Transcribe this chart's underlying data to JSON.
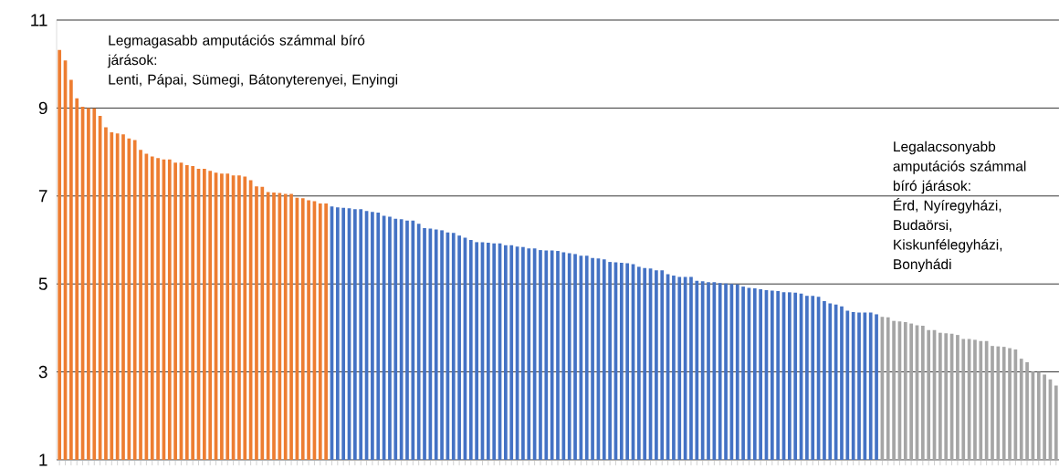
{
  "chart_data": {
    "type": "bar",
    "categories": [
      null,
      null,
      null,
      null,
      null,
      null,
      null,
      null,
      null,
      null,
      null,
      null,
      null,
      null,
      null,
      null,
      null,
      null,
      null,
      null,
      null,
      null,
      null,
      null,
      null,
      null,
      null,
      null,
      null,
      null,
      null,
      null,
      null,
      null,
      null,
      null,
      null,
      null,
      null,
      null,
      null,
      null,
      null,
      null,
      null,
      null,
      null,
      null,
      null,
      null,
      null,
      null,
      null,
      null,
      null,
      null,
      null,
      null,
      null,
      null,
      null,
      null,
      null,
      null,
      null,
      null,
      null,
      null,
      null,
      null,
      null,
      null,
      null,
      null,
      null,
      null,
      null,
      null,
      null,
      null,
      null,
      null,
      null,
      null,
      null,
      null,
      null,
      null,
      null,
      null,
      null,
      null,
      null,
      null,
      null,
      null,
      null,
      null,
      null,
      null,
      null,
      null,
      null,
      null,
      null,
      null,
      null,
      null,
      null,
      null,
      null,
      null,
      null,
      null,
      null,
      null,
      null,
      null,
      null,
      null,
      null,
      null,
      null,
      null,
      null,
      null,
      null,
      null,
      null,
      null,
      null,
      null,
      null,
      null,
      null,
      null,
      null,
      null,
      null,
      null,
      null,
      null,
      null,
      null,
      null,
      null,
      null,
      null,
      null,
      null,
      null,
      null,
      null,
      null,
      null,
      null,
      null,
      null,
      null,
      null,
      null,
      null,
      null,
      null,
      null,
      null,
      null,
      null,
      null,
      null,
      null,
      null,
      null
    ],
    "values": [
      10.32,
      10.08,
      9.64,
      9.22,
      9.03,
      9.0,
      8.99,
      8.82,
      8.56,
      8.45,
      8.42,
      8.4,
      8.31,
      8.27,
      8.05,
      7.96,
      7.9,
      7.86,
      7.83,
      7.83,
      7.76,
      7.76,
      7.7,
      7.68,
      7.62,
      7.62,
      7.57,
      7.53,
      7.51,
      7.51,
      7.47,
      7.47,
      7.44,
      7.36,
      7.22,
      7.21,
      7.09,
      7.08,
      7.07,
      7.05,
      7.05,
      6.96,
      6.95,
      6.9,
      6.88,
      6.83,
      6.83,
      6.76,
      6.74,
      6.73,
      6.72,
      6.7,
      6.7,
      6.66,
      6.64,
      6.62,
      6.55,
      6.53,
      6.48,
      6.47,
      6.44,
      6.44,
      6.37,
      6.27,
      6.26,
      6.24,
      6.22,
      6.17,
      6.16,
      6.1,
      6.05,
      6.0,
      5.95,
      5.95,
      5.94,
      5.92,
      5.92,
      5.88,
      5.88,
      5.85,
      5.84,
      5.81,
      5.81,
      5.77,
      5.76,
      5.76,
      5.75,
      5.72,
      5.7,
      5.68,
      5.64,
      5.64,
      5.59,
      5.58,
      5.56,
      5.5,
      5.49,
      5.48,
      5.47,
      5.45,
      5.39,
      5.36,
      5.35,
      5.31,
      5.31,
      5.22,
      5.19,
      5.16,
      5.16,
      5.16,
      5.07,
      5.06,
      5.04,
      5.04,
      5.02,
      5.01,
      5.0,
      4.99,
      4.94,
      4.91,
      4.9,
      4.88,
      4.86,
      4.85,
      4.84,
      4.81,
      4.81,
      4.8,
      4.78,
      4.73,
      4.73,
      4.71,
      4.61,
      4.56,
      4.53,
      4.49,
      4.39,
      4.36,
      4.35,
      4.35,
      4.35,
      4.31,
      4.25,
      4.24,
      4.16,
      4.15,
      4.13,
      4.1,
      4.06,
      4.05,
      3.95,
      3.95,
      3.89,
      3.88,
      3.87,
      3.84,
      3.75,
      3.75,
      3.73,
      3.7,
      3.7,
      3.59,
      3.58,
      3.57,
      3.54,
      3.51,
      3.3,
      3.22,
      3.01,
      3.0,
      2.94,
      2.83,
      2.69
    ],
    "colors": [
      "#ed7d31",
      "#ed7d31",
      "#ed7d31",
      "#ed7d31",
      "#ed7d31",
      "#ed7d31",
      "#ed7d31",
      "#ed7d31",
      "#ed7d31",
      "#ed7d31",
      "#ed7d31",
      "#ed7d31",
      "#ed7d31",
      "#ed7d31",
      "#ed7d31",
      "#ed7d31",
      "#ed7d31",
      "#ed7d31",
      "#ed7d31",
      "#ed7d31",
      "#ed7d31",
      "#ed7d31",
      "#ed7d31",
      "#ed7d31",
      "#ed7d31",
      "#ed7d31",
      "#ed7d31",
      "#ed7d31",
      "#ed7d31",
      "#ed7d31",
      "#ed7d31",
      "#ed7d31",
      "#ed7d31",
      "#ed7d31",
      "#ed7d31",
      "#ed7d31",
      "#ed7d31",
      "#ed7d31",
      "#ed7d31",
      "#ed7d31",
      "#ed7d31",
      "#ed7d31",
      "#ed7d31",
      "#ed7d31",
      "#ed7d31",
      "#ed7d31",
      "#ed7d31",
      "#4472c4",
      "#4472c4",
      "#4472c4",
      "#4472c4",
      "#4472c4",
      "#4472c4",
      "#4472c4",
      "#4472c4",
      "#4472c4",
      "#4472c4",
      "#4472c4",
      "#4472c4",
      "#4472c4",
      "#4472c4",
      "#4472c4",
      "#4472c4",
      "#4472c4",
      "#4472c4",
      "#4472c4",
      "#4472c4",
      "#4472c4",
      "#4472c4",
      "#4472c4",
      "#4472c4",
      "#4472c4",
      "#4472c4",
      "#4472c4",
      "#4472c4",
      "#4472c4",
      "#4472c4",
      "#4472c4",
      "#4472c4",
      "#4472c4",
      "#4472c4",
      "#4472c4",
      "#4472c4",
      "#4472c4",
      "#4472c4",
      "#4472c4",
      "#4472c4",
      "#4472c4",
      "#4472c4",
      "#4472c4",
      "#4472c4",
      "#4472c4",
      "#4472c4",
      "#4472c4",
      "#4472c4",
      "#4472c4",
      "#4472c4",
      "#4472c4",
      "#4472c4",
      "#4472c4",
      "#4472c4",
      "#4472c4",
      "#4472c4",
      "#4472c4",
      "#4472c4",
      "#4472c4",
      "#4472c4",
      "#4472c4",
      "#4472c4",
      "#4472c4",
      "#4472c4",
      "#4472c4",
      "#4472c4",
      "#4472c4",
      "#4472c4",
      "#4472c4",
      "#4472c4",
      "#4472c4",
      "#4472c4",
      "#4472c4",
      "#4472c4",
      "#4472c4",
      "#4472c4",
      "#4472c4",
      "#4472c4",
      "#4472c4",
      "#4472c4",
      "#4472c4",
      "#4472c4",
      "#4472c4",
      "#4472c4",
      "#4472c4",
      "#4472c4",
      "#4472c4",
      "#4472c4",
      "#4472c4",
      "#4472c4",
      "#4472c4",
      "#4472c4",
      "#4472c4",
      "#4472c4",
      "#4472c4",
      "#a5a5a5",
      "#a5a5a5",
      "#a5a5a5",
      "#a5a5a5",
      "#a5a5a5",
      "#a5a5a5",
      "#a5a5a5",
      "#a5a5a5",
      "#a5a5a5",
      "#a5a5a5",
      "#a5a5a5",
      "#a5a5a5",
      "#a5a5a5",
      "#a5a5a5",
      "#a5a5a5",
      "#a5a5a5",
      "#a5a5a5",
      "#a5a5a5",
      "#a5a5a5",
      "#a5a5a5",
      "#a5a5a5",
      "#a5a5a5",
      "#a5a5a5",
      "#a5a5a5",
      "#a5a5a5",
      "#a5a5a5",
      "#a5a5a5",
      "#a5a5a5",
      "#a5a5a5",
      "#a5a5a5",
      "#a5a5a5"
    ],
    "ylim": [
      1,
      11
    ],
    "yticks": [
      1,
      3,
      5,
      7,
      9,
      11
    ],
    "grid": "y",
    "tick_labels": "y",
    "annotations": [
      "Legmagasabb amputációs számmal bíró járások:",
      "Lenti, Pápai, Sümegi, Bátonyterenyei, Enyingi",
      "Legalacsonyabb amputációs számmal bíró járások:",
      "Érd, Nyíregyházi, Budaörsi, Kiskunfélegyházi, Bonyhádi"
    ]
  }
}
